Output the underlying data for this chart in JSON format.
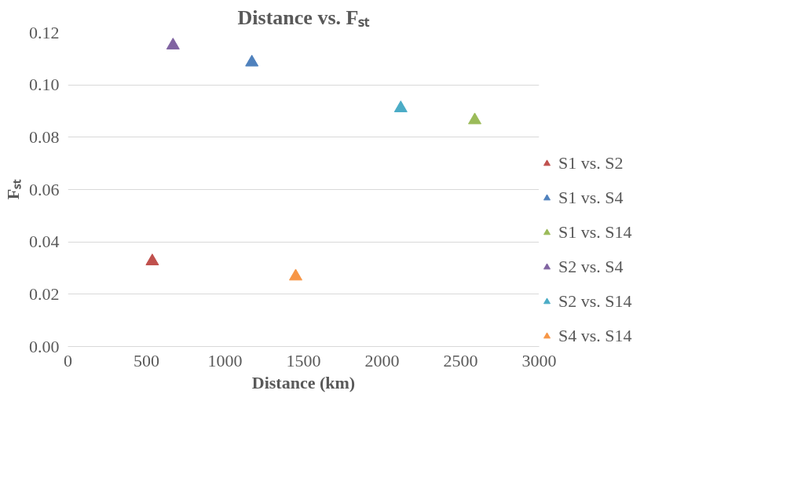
{
  "chart_data": {
    "type": "scatter",
    "title": "Distance vs. Fₛₜ",
    "xlabel": "Distance (km)",
    "ylabel": "Fₛₜ",
    "series": [
      {
        "name": "S1 vs. S2",
        "color": "#c0504d",
        "x": [
          537
        ],
        "values": [
          0.0326
        ]
      },
      {
        "name": "S1 vs. S4",
        "color": "#4f81bd",
        "x": [
          1171
        ],
        "values": [
          0.1086
        ]
      },
      {
        "name": "S1 vs. S14",
        "color": "#9bbb59",
        "x": [
          2590
        ],
        "values": [
          0.0865
        ]
      },
      {
        "name": "S2 vs. S4",
        "color": "#8064a2",
        "x": [
          669
        ],
        "values": [
          0.1151
        ]
      },
      {
        "name": "S2 vs. S14",
        "color": "#4bacc6",
        "x": [
          2119
        ],
        "values": [
          0.0911
        ]
      },
      {
        "name": "S4 vs. S14",
        "color": "#f79646",
        "x": [
          1450
        ],
        "values": [
          0.0268
        ]
      }
    ],
    "xlim": [
      0,
      3000
    ],
    "xticks": [
      0,
      500,
      1000,
      1500,
      2000,
      2500,
      3000
    ],
    "ylim": [
      0,
      0.12
    ],
    "yticks": [
      {
        "value": 0,
        "label": "0.00"
      },
      {
        "value": 0.02,
        "label": "0.02"
      },
      {
        "value": 0.04,
        "label": "0.04"
      },
      {
        "value": 0.06,
        "label": "0.06"
      },
      {
        "value": 0.08,
        "label": "0.08"
      },
      {
        "value": 0.1,
        "label": "0.10"
      },
      {
        "value": 0.12,
        "label": "0.12"
      }
    ],
    "grid": "y",
    "legend": "right",
    "marker": "triangle"
  }
}
